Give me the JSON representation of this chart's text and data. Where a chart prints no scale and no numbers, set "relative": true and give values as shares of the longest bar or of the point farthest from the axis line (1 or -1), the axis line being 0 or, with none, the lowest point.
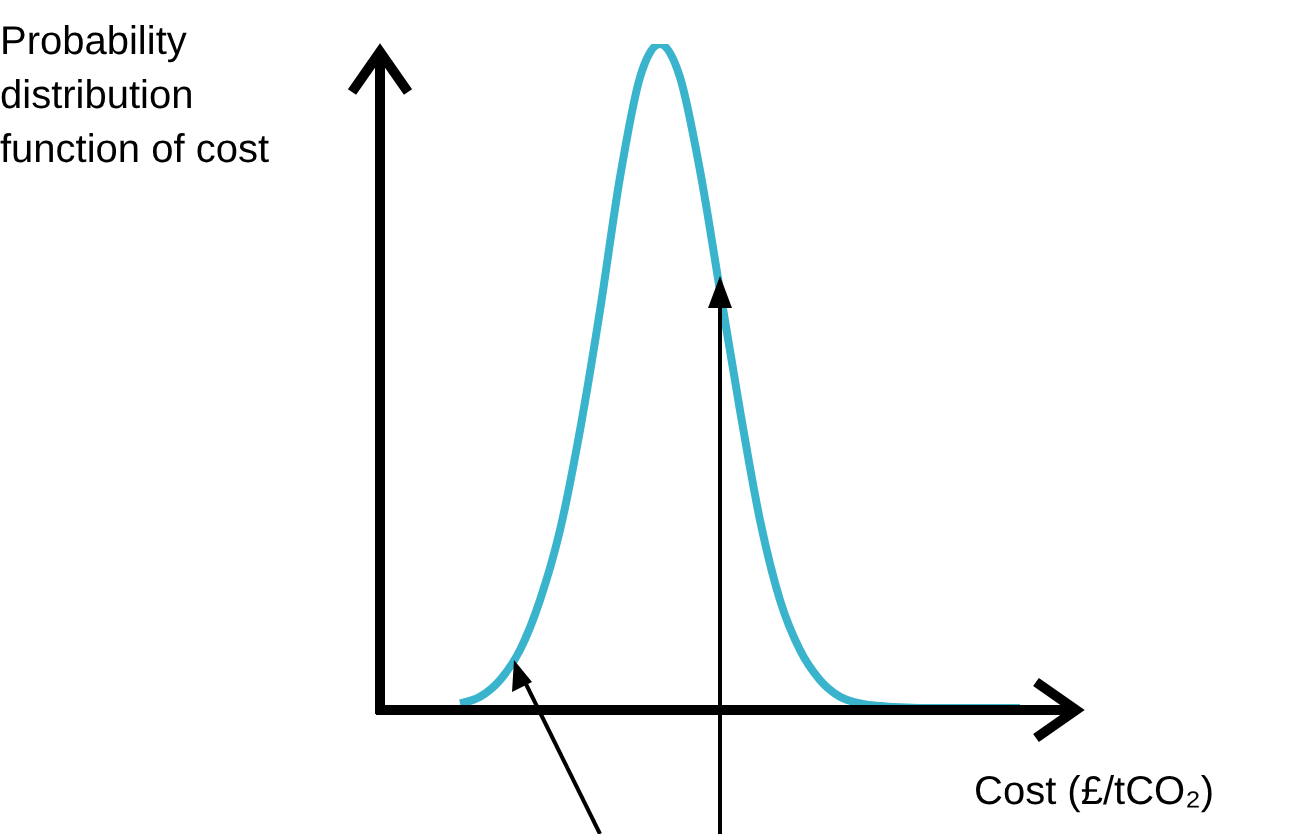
{
  "chart_data": {
    "type": "line",
    "relative": true,
    "ylabel": "Probability distribution function of cost",
    "xlabel": "Cost (£/tCO₂)",
    "categories": [
      null,
      null,
      null,
      null,
      null,
      null,
      null,
      null,
      null,
      null,
      null,
      null,
      null,
      null,
      null,
      null,
      null,
      null,
      null,
      null,
      null,
      null,
      null,
      null,
      null,
      null,
      null,
      null,
      null,
      null,
      null,
      null,
      null,
      null,
      null
    ],
    "series": [
      {
        "color": "#3ab4cc",
        "values": [
          null,
          null,
          null,
          null,
          0.01,
          0.02,
          0.045,
          0.09,
          0.165,
          0.27,
          0.42,
          0.6,
          0.8,
          0.95,
          1,
          0.95,
          0.81,
          0.63,
          0.45,
          0.285,
          0.165,
          0.09,
          0.045,
          0.02,
          0.01,
          0.006,
          0.004,
          0.003,
          0.003,
          0.003,
          0.003,
          0.003,
          0.003,
          null,
          null
        ]
      }
    ],
    "marker": "none",
    "grid": false,
    "legend": false
  }
}
